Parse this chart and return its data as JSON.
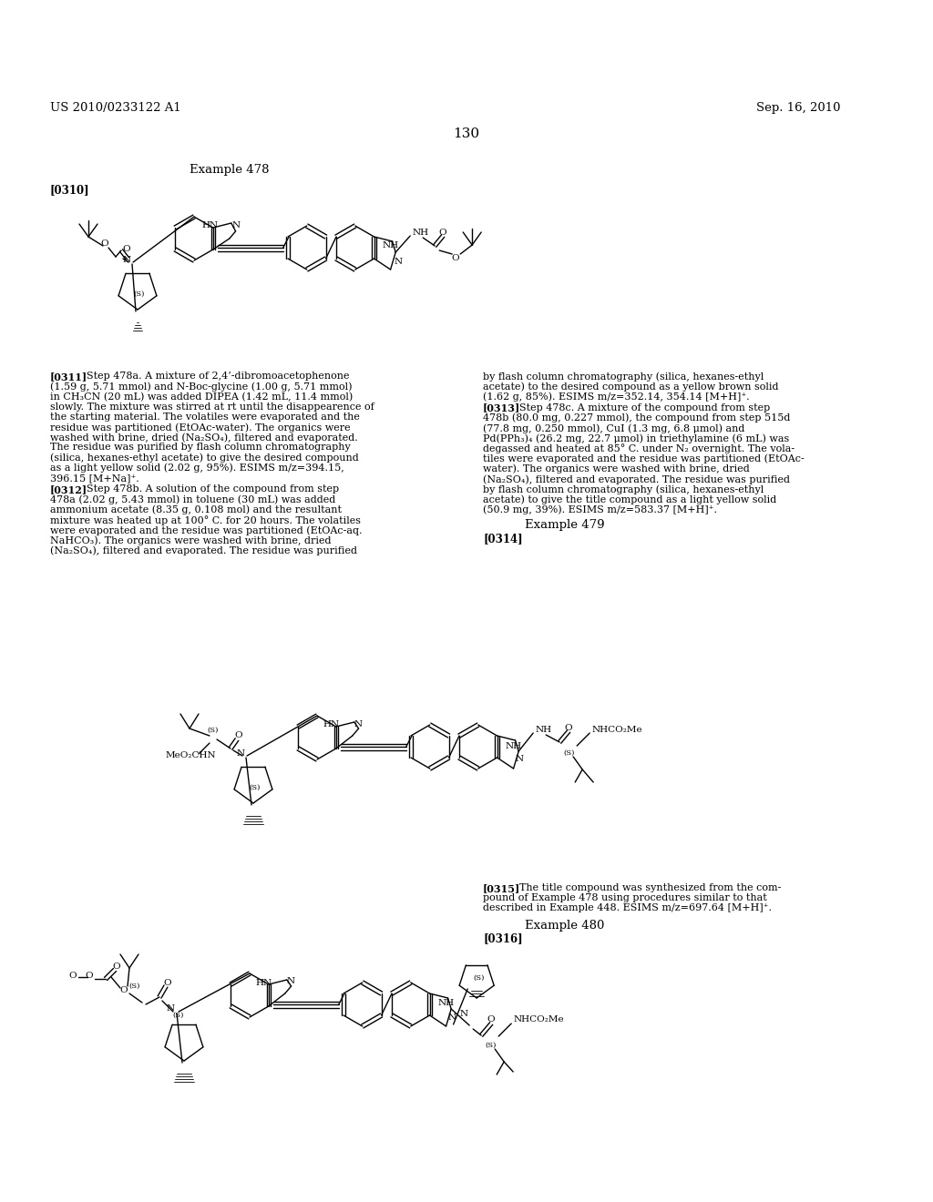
{
  "bg": "#ffffff",
  "header_left": "US 2010/0233122 A1",
  "header_right": "Sep. 16, 2010",
  "page_num": "130",
  "ex478": "Example 478",
  "p0310": "[0310]",
  "ex479": "Example 479",
  "p0314": "[0314]",
  "p0315_label": "[0315]",
  "p0315_text": "The title compound was synthesized from the com-pound of Example 478 using procedures similar to that described in Example 448. ESIMS m/z=697.64 [M+H]⁺.",
  "ex480": "Example 480",
  "p0316": "[0316]",
  "col1_lines_311": [
    "[0311] Step 478a. A mixture of 2,4’-dibromoacetophenone",
    "(1.59 g, 5.71 mmol) and N-Boc-glycine (1.00 g, 5.71 mmol)",
    "in CH₃CN (20 mL) was added DIPEA (1.42 mL, 11.4 mmol)",
    "slowly. The mixture was stirred at rt until the disappearence of",
    "the starting material. The volatiles were evaporated and the",
    "residue was partitioned (EtOAc-water). The organics were",
    "washed with brine, dried (Na₂SO₄), filtered and evaporated.",
    "The residue was purified by flash column chromatography",
    "(silica, hexanes-ethyl acetate) to give the desired compound",
    "as a light yellow solid (2.02 g, 95%). ESIMS m/z=394.15,",
    "396.15 [M+Na]⁺."
  ],
  "col1_lines_312": [
    "[0312] Step 478b. A solution of the compound from step",
    "478a (2.02 g, 5.43 mmol) in toluene (30 mL) was added",
    "ammonium acetate (8.35 g, 0.108 mol) and the resultant",
    "mixture was heated up at 100° C. for 20 hours. The volatiles",
    "were evaporated and the residue was partitioned (EtOAc-aq.",
    "NaHCO₃). The organics were washed with brine, dried",
    "(Na₂SO₄), filtered and evaporated. The residue was purified"
  ],
  "col2_lines_311r": [
    "by flash column chromatography (silica, hexanes-ethyl",
    "acetate) to the desired compound as a yellow brown solid",
    "(1.62 g, 85%). ESIMS m/z=352.14, 354.14 [M+H]⁺."
  ],
  "col2_lines_313": [
    "[0313] Step 478c. A mixture of the compound from step",
    "478b (80.0 mg, 0.227 mmol), the compound from step 515d",
    "(77.8 mg, 0.250 mmol), CuI (1.3 mg, 6.8 μmol) and",
    "Pd(PPh₃)₄ (26.2 mg, 22.7 μmol) in triethylamine (6 mL) was",
    "degassed and heated at 85° C. under N₂ overnight. The vola-",
    "tiles were evaporated and the residue was partitioned (EtOAc-",
    "water). The organics were washed with brine, dried",
    "(Na₂SO₄), filtered and evaporated. The residue was purified",
    "by flash column chromatography (silica, hexanes-ethyl",
    "acetate) to give the title compound as a light yellow solid",
    "(50.9 mg, 39%). ESIMS m/z=583.37 [M+H]⁺."
  ]
}
